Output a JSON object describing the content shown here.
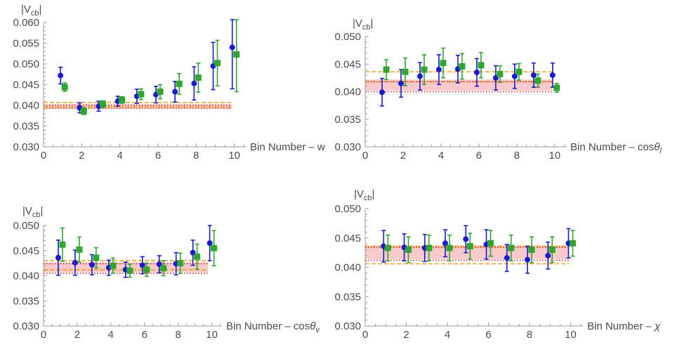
{
  "colors": {
    "blue": "#1a1ad0",
    "green": "#2fa62f",
    "band_fill": "#f7c0c0",
    "red_dotted": "#e02020",
    "orange_dashed": "#f0a020",
    "axis": "#9a9a9a",
    "text": "#4a4a4a"
  },
  "chart_data": [
    {
      "type": "scatter",
      "ylabel_main": "|V",
      "ylabel_sub": "cb",
      "ylabel_close": "|",
      "xlabel": "Bin Number – w",
      "xlabel_sym": "",
      "xlabel_sub": "",
      "xlim": [
        0,
        10.6
      ],
      "ylim": [
        0.03,
        0.06
      ],
      "xticks": [
        "0",
        "2",
        "4",
        "6",
        "8",
        "10"
      ],
      "yticks": [
        "0.030",
        "0.035",
        "0.040",
        "0.045",
        "0.050",
        "0.055",
        "0.060"
      ],
      "band": [
        0.0392,
        0.0402
      ],
      "dotted": [
        0.0393,
        0.0401
      ],
      "dashed": [
        0.0397,
        0.0407
      ],
      "series": [
        {
          "marker": "circle",
          "color": "blue",
          "x": [
            1,
            2,
            3,
            4,
            5,
            6,
            7,
            8,
            9,
            10
          ],
          "y": [
            0.0472,
            0.0394,
            0.0398,
            0.041,
            0.0422,
            0.0426,
            0.0433,
            0.0453,
            0.0495,
            0.054
          ],
          "err": [
            0.002,
            0.0012,
            0.0012,
            0.0012,
            0.0017,
            0.002,
            0.0025,
            0.004,
            0.0057,
            0.01
          ]
        },
        {
          "marker": "square",
          "color": "green",
          "x": [
            1,
            2,
            3,
            4,
            5,
            6,
            7,
            8,
            9,
            10
          ],
          "y": [
            0.0444,
            0.0386,
            0.0403,
            0.0413,
            0.0427,
            0.0433,
            0.0452,
            0.0467,
            0.0502,
            0.0523
          ],
          "err": [
            0.001,
            0.0008,
            0.0008,
            0.0008,
            0.0013,
            0.0017,
            0.0025,
            0.0035,
            0.0055,
            0.009
          ]
        }
      ]
    },
    {
      "type": "scatter",
      "ylabel_main": "|V",
      "ylabel_sub": "cb",
      "ylabel_close": "|",
      "xlabel": "Bin Number – cos",
      "xlabel_sym": "θ",
      "xlabel_sub": "l",
      "xlim": [
        0,
        10.6
      ],
      "ylim": [
        0.03,
        0.05
      ],
      "xticks": [
        "0",
        "2",
        "4",
        "6",
        "8",
        "10"
      ],
      "yticks": [
        "0.030",
        "0.035",
        "0.040",
        "0.045",
        "0.050"
      ],
      "band": [
        0.0402,
        0.0422
      ],
      "dotted": [
        0.04,
        0.0418
      ],
      "dashed": [
        0.0418,
        0.0436
      ],
      "series": [
        {
          "marker": "circle",
          "color": "blue",
          "x": [
            1,
            2,
            3,
            4,
            5,
            6,
            7,
            8,
            9,
            10
          ],
          "y": [
            0.0399,
            0.0415,
            0.0428,
            0.044,
            0.0441,
            0.0435,
            0.0425,
            0.0428,
            0.043,
            0.043
          ],
          "err": [
            0.0025,
            0.0025,
            0.0025,
            0.0027,
            0.0025,
            0.0025,
            0.0022,
            0.0022,
            0.0022,
            0.0022
          ]
        },
        {
          "marker": "square",
          "color": "green",
          "x": [
            1,
            2,
            3,
            4,
            5,
            6,
            7,
            8,
            9,
            10
          ],
          "y": [
            0.044,
            0.0436,
            0.044,
            0.0452,
            0.0446,
            0.0448,
            0.0432,
            0.0436,
            0.042,
            0.0407
          ],
          "err": [
            0.0018,
            0.0025,
            0.0027,
            0.0027,
            0.0023,
            0.0023,
            0.0015,
            0.0015,
            0.0012,
            0.0008
          ]
        }
      ]
    },
    {
      "type": "scatter",
      "ylabel_main": "|V",
      "ylabel_sub": "cb",
      "ylabel_close": "|",
      "xlabel": "Bin Number – cos",
      "xlabel_sym": "θ",
      "xlabel_sub": "v",
      "xlim": [
        0,
        10.6
      ],
      "ylim": [
        0.03,
        0.05
      ],
      "xticks": [
        "0",
        "2",
        "4",
        "6",
        "8",
        "10"
      ],
      "yticks": [
        "0.030",
        "0.035",
        "0.040",
        "0.045",
        "0.050"
      ],
      "band": [
        0.0407,
        0.0426
      ],
      "dotted": [
        0.0405,
        0.0424
      ],
      "dashed": [
        0.0412,
        0.043
      ],
      "series": [
        {
          "marker": "circle",
          "color": "blue",
          "x": [
            1,
            2,
            3,
            4,
            5,
            6,
            7,
            8,
            9,
            10
          ],
          "y": [
            0.0436,
            0.0426,
            0.0422,
            0.0416,
            0.0412,
            0.0421,
            0.0423,
            0.0424,
            0.0446,
            0.0465
          ],
          "err": [
            0.0035,
            0.0025,
            0.002,
            0.0015,
            0.0015,
            0.0017,
            0.0017,
            0.0022,
            0.0025,
            0.0035
          ]
        },
        {
          "marker": "square",
          "color": "green",
          "x": [
            1,
            2,
            3,
            4,
            5,
            6,
            7,
            8,
            9,
            10
          ],
          "y": [
            0.0462,
            0.0452,
            0.0436,
            0.042,
            0.041,
            0.0412,
            0.0415,
            0.0425,
            0.0438,
            0.0455
          ],
          "err": [
            0.0033,
            0.0025,
            0.002,
            0.0015,
            0.0013,
            0.0013,
            0.0015,
            0.002,
            0.0025,
            0.0035
          ]
        }
      ]
    },
    {
      "type": "scatter",
      "ylabel_main": "|V",
      "ylabel_sub": "cb",
      "ylabel_close": "|",
      "xlabel": "Bin Number – ",
      "xlabel_sym": "χ",
      "xlabel_sub": "",
      "xlim": [
        0,
        10.6
      ],
      "ylim": [
        0.03,
        0.05
      ],
      "xticks": [
        "0",
        "2",
        "4",
        "6",
        "8",
        "10"
      ],
      "yticks": [
        "0.030",
        "0.035",
        "0.040",
        "0.045",
        "0.050"
      ],
      "band": [
        0.0414,
        0.0437
      ],
      "dotted": [
        0.0412,
        0.0434
      ],
      "dashed": [
        0.0406,
        0.0436
      ],
      "series": [
        {
          "marker": "circle",
          "color": "blue",
          "x": [
            1,
            2,
            3,
            4,
            5,
            6,
            7,
            8,
            9,
            10
          ],
          "y": [
            0.0436,
            0.0434,
            0.0433,
            0.0441,
            0.0448,
            0.0439,
            0.0416,
            0.0413,
            0.042,
            0.0441
          ],
          "err": [
            0.0027,
            0.0023,
            0.0023,
            0.0023,
            0.0023,
            0.0025,
            0.0023,
            0.0023,
            0.0023,
            0.0025
          ]
        },
        {
          "marker": "square",
          "color": "green",
          "x": [
            1,
            2,
            3,
            4,
            5,
            6,
            7,
            8,
            9,
            10
          ],
          "y": [
            0.0433,
            0.043,
            0.0433,
            0.0433,
            0.0436,
            0.0441,
            0.0433,
            0.043,
            0.043,
            0.0441
          ],
          "err": [
            0.0022,
            0.0022,
            0.0022,
            0.0022,
            0.0022,
            0.0022,
            0.0022,
            0.0022,
            0.0022,
            0.0022
          ]
        }
      ]
    }
  ]
}
